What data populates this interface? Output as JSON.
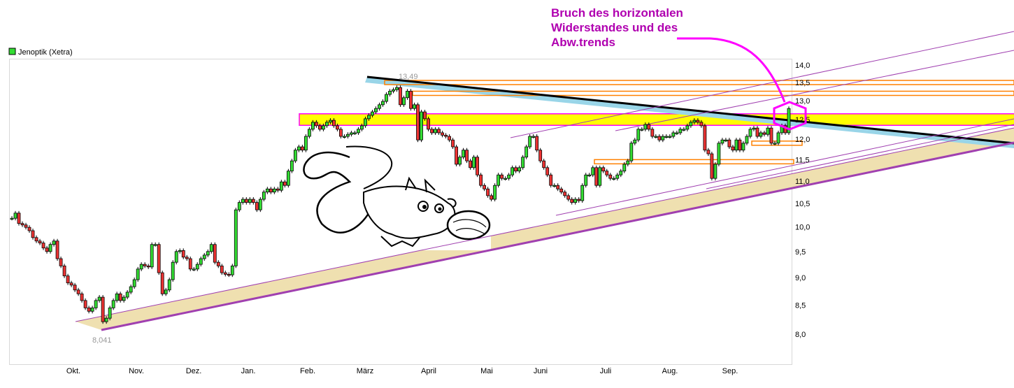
{
  "legend": {
    "label": "Jenoptik (Xetra)",
    "color": "#33dd33"
  },
  "annotation": {
    "lines": [
      "Bruch des horizontalen",
      "Widerstandes und des",
      "Abw.trends"
    ],
    "color": "#b000b0",
    "arrow_color": "#ff00ff"
  },
  "chart_data": {
    "type": "candlestick",
    "title": "",
    "series_name": "Jenoptik (Xetra)",
    "y_scale": "log",
    "ylim": [
      7.6,
      14.3
    ],
    "y_ticks": [
      "14,0",
      "13,5",
      "13,0",
      "12,5",
      "12,0",
      "11,5",
      "11,0",
      "10,5",
      "10,0",
      "9,5",
      "9,0",
      "8,5",
      "8,0"
    ],
    "y_tick_values": [
      14,
      13.5,
      13,
      12.5,
      12,
      11.5,
      11,
      10.5,
      10,
      9.5,
      9,
      8.5,
      8
    ],
    "x_ticks": [
      "Okt.",
      "Nov.",
      "Dez.",
      "Jan.",
      "Feb.",
      "März",
      "April",
      "Mai",
      "Juni",
      "Juli",
      "Aug.",
      "Sep."
    ],
    "grid": false,
    "up_color": "#33dd33",
    "down_color": "#ee3333",
    "extremes": {
      "high_label": "13,49",
      "high": 13.49,
      "low_label": "8,041",
      "low": 8.041
    },
    "close": [
      10.18,
      10.29,
      10.07,
      10.04,
      9.99,
      9.92,
      9.78,
      9.71,
      9.67,
      9.57,
      9.5,
      9.64,
      9.71,
      9.36,
      9.22,
      9.03,
      8.9,
      8.86,
      8.77,
      8.7,
      8.58,
      8.45,
      8.39,
      8.45,
      8.58,
      8.64,
      8.21,
      8.27,
      8.45,
      8.58,
      8.7,
      8.58,
      8.64,
      8.73,
      8.83,
      8.96,
      9.16,
      9.25,
      9.22,
      9.2,
      9.64,
      9.64,
      9.09,
      8.7,
      8.77,
      8.96,
      9.29,
      9.5,
      9.52,
      9.39,
      9.36,
      9.16,
      9.16,
      9.25,
      9.36,
      9.43,
      9.5,
      9.64,
      9.29,
      9.22,
      9.09,
      9.06,
      9.05,
      9.22,
      10.36,
      10.52,
      10.59,
      10.52,
      10.59,
      10.52,
      10.36,
      10.59,
      10.75,
      10.82,
      10.75,
      10.82,
      10.79,
      10.98,
      10.9,
      11.23,
      11.47,
      11.73,
      11.81,
      11.73,
      12.07,
      12.25,
      12.43,
      12.34,
      12.25,
      12.34,
      12.43,
      12.48,
      12.34,
      12.25,
      12.07,
      12.07,
      12.12,
      12.16,
      12.16,
      12.25,
      12.34,
      12.52,
      12.61,
      12.7,
      12.79,
      12.89,
      12.98,
      13.17,
      13.26,
      13.3,
      13.36,
      12.89,
      13.08,
      13.26,
      12.79,
      12.89,
      11.98,
      12.7,
      12.52,
      12.25,
      12.16,
      12.25,
      12.16,
      12.1,
      12.07,
      11.98,
      11.81,
      11.39,
      11.56,
      11.73,
      11.47,
      11.31,
      11.56,
      11.14,
      10.9,
      10.82,
      10.67,
      10.59,
      10.9,
      11.14,
      11.06,
      11.06,
      11.14,
      11.31,
      11.23,
      11.31,
      11.56,
      11.81,
      12.07,
      12.07,
      11.73,
      11.47,
      11.31,
      11.14,
      10.9,
      10.9,
      10.82,
      10.75,
      10.67,
      10.59,
      10.52,
      10.59,
      10.56,
      10.9,
      11.14,
      11.14,
      11.31,
      10.9,
      11.31,
      11.23,
      11.14,
      11.06,
      11.06,
      11.14,
      11.23,
      11.39,
      11.47,
      11.9,
      11.98,
      12.25,
      12.25,
      12.37,
      12.25,
      12.07,
      12.07,
      11.98,
      12.07,
      12.07,
      12.07,
      12.16,
      12.16,
      12.25,
      12.25,
      12.34,
      12.43,
      12.48,
      12.43,
      12.34,
      11.73,
      11.64,
      11.06,
      11.39,
      11.9,
      11.98,
      11.98,
      11.81,
      11.73,
      11.98,
      11.73,
      11.9,
      12.07,
      12.25,
      12.28,
      12.07,
      12.16,
      12.12,
      12.28,
      11.9,
      11.9,
      12.16,
      12.34,
      12.16,
      12.79
    ],
    "overlays": {
      "resistance_zone": {
        "from": 12.35,
        "to": 12.65,
        "fill": "#ffff00",
        "border": "#ff00ff"
      },
      "horizontal_levels": [
        13.5,
        13.2,
        11.45,
        11.9
      ],
      "level_color": "#ff8000",
      "downtrend_color": "#000000",
      "downtrend_band_color": "#99d5e8",
      "uptrend_band_color": "#efe0b0",
      "uptrend_line_color": "#a040b0"
    }
  }
}
